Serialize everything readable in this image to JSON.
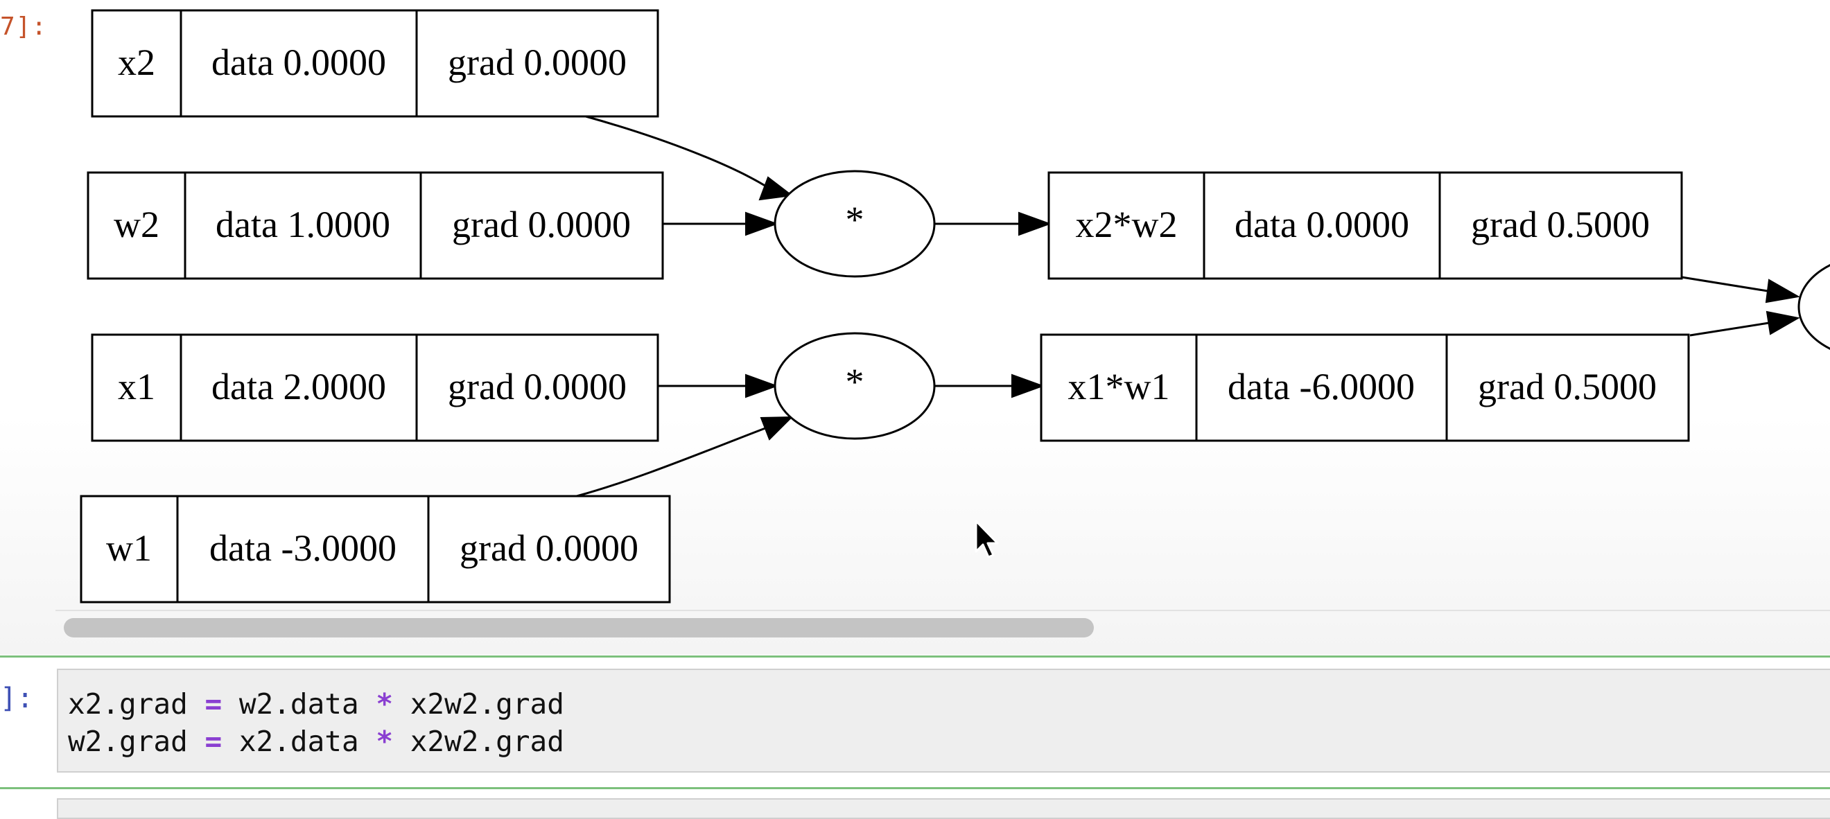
{
  "output_prompt": "7]:",
  "input_prompt": "]:",
  "graph": {
    "value_nodes": [
      {
        "id": "x2",
        "label": "x2",
        "data": "data 0.0000",
        "grad": "grad 0.0000"
      },
      {
        "id": "w2",
        "label": "w2",
        "data": "data 1.0000",
        "grad": "grad 0.0000"
      },
      {
        "id": "x1",
        "label": "x1",
        "data": "data 2.0000",
        "grad": "grad 0.0000"
      },
      {
        "id": "w1",
        "label": "w1",
        "data": "data -3.0000",
        "grad": "grad 0.0000"
      },
      {
        "id": "x2w2",
        "label": "x2*w2",
        "data": "data 0.0000",
        "grad": "grad 0.5000"
      },
      {
        "id": "x1w1",
        "label": "x1*w1",
        "data": "data -6.0000",
        "grad": "grad 0.5000"
      }
    ],
    "op_nodes": [
      {
        "id": "mul-top",
        "label": "*"
      },
      {
        "id": "mul-bottom",
        "label": "*"
      },
      {
        "id": "add-partial",
        "label": ""
      }
    ]
  },
  "code": {
    "lines": [
      [
        {
          "t": "x2.grad ",
          "k": "plain"
        },
        {
          "t": "=",
          "k": "op"
        },
        {
          "t": " w2.data ",
          "k": "plain"
        },
        {
          "t": "*",
          "k": "op"
        },
        {
          "t": " x2w2.grad",
          "k": "plain"
        }
      ],
      [
        {
          "t": "w2.grad ",
          "k": "plain"
        },
        {
          "t": "=",
          "k": "op"
        },
        {
          "t": " x2.data ",
          "k": "plain"
        },
        {
          "t": "*",
          "k": "op"
        },
        {
          "t": " x2w2.grad",
          "k": "plain"
        }
      ]
    ]
  },
  "colors": {
    "output_prompt": "#c5532a",
    "input_prompt": "#3f51b5",
    "operator": "#8a3fd1",
    "cell_separator": "#7cc07c"
  },
  "icons": {
    "cursor": "mouse-pointer-icon"
  }
}
